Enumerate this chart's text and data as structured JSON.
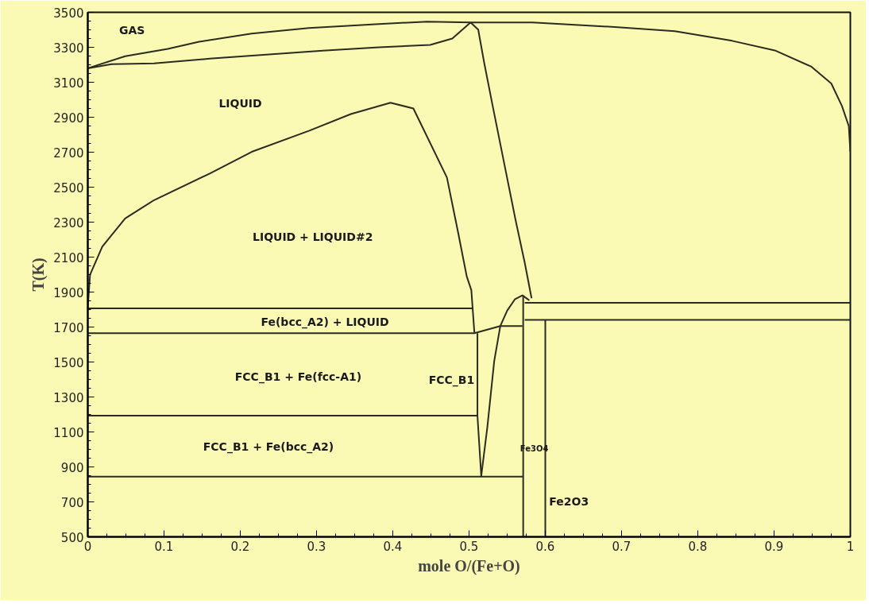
{
  "chart_data": {
    "type": "line",
    "xlabel": "mole O/(Fe+O)",
    "ylabel": "T(K)",
    "xlim": [
      0,
      1
    ],
    "ylim": [
      500,
      3500
    ],
    "xticks": [
      0,
      0.1,
      0.2,
      0.3,
      0.4,
      0.5,
      0.6,
      0.7,
      0.8,
      0.9,
      1
    ],
    "yticks": [
      500,
      700,
      900,
      1100,
      1300,
      1500,
      1700,
      1900,
      2100,
      2300,
      2500,
      2700,
      2900,
      3100,
      3300,
      3500
    ],
    "grid": false,
    "marker": "none",
    "line_style": "solid",
    "series": [
      {
        "color": "#2b2b1f",
        "x": [
          0,
          0.049,
          0.105,
          0.146,
          0.215,
          0.29,
          0.382,
          0.445,
          0.502,
          0.583,
          0.695,
          0.77,
          0.845,
          0.901,
          0.949,
          0.975,
          0.989,
          0.998,
          1
        ],
        "values": [
          3180,
          3249,
          3291,
          3332,
          3378,
          3410,
          3433,
          3447,
          3442,
          3442,
          3415,
          3392,
          3337,
          3282,
          3189,
          3093,
          2964,
          2849,
          2702
        ]
      },
      {
        "color": "#2b2b1f",
        "x": [
          0,
          0.031,
          0.087,
          0.16,
          0.234,
          0.308,
          0.382,
          0.449,
          0.478,
          0.502
        ],
        "values": [
          3180,
          3203,
          3208,
          3235,
          3258,
          3281,
          3300,
          3314,
          3350,
          3442
        ]
      },
      {
        "color": "#2b2b1f",
        "x": [
          0.502,
          0.512,
          0.52,
          0.531,
          0.546,
          0.561,
          0.573,
          0.582
        ],
        "values": [
          3442,
          3401,
          3208,
          2964,
          2638,
          2312,
          2068,
          1865
        ]
      },
      {
        "color": "#2b2b1f",
        "x": [
          0,
          0.003,
          0.019,
          0.049,
          0.087,
          0.16,
          0.215,
          0.29,
          0.345,
          0.397,
          0.427,
          0.471,
          0.486,
          0.497,
          0.503,
          0.507
        ],
        "values": [
          1810,
          1999,
          2160,
          2321,
          2426,
          2578,
          2702,
          2822,
          2918,
          2983,
          2950,
          2555,
          2233,
          1989,
          1911,
          1668
        ]
      },
      {
        "color": "#2b2b1f",
        "x": [
          0,
          0.505
        ],
        "values": [
          1807,
          1807
        ]
      },
      {
        "color": "#2b2b1f",
        "x": [
          0,
          0.507,
          0.541,
          0.57
        ],
        "values": [
          1665,
          1665,
          1706,
          1706
        ]
      },
      {
        "color": "#2b2b1f",
        "x": [
          0,
          0.511
        ],
        "values": [
          1193,
          1193
        ]
      },
      {
        "color": "#2b2b1f",
        "x": [
          0,
          0.571
        ],
        "values": [
          844,
          844
        ]
      },
      {
        "color": "#2b2b1f",
        "x": [
          0.511,
          0.511,
          0.516
        ],
        "values": [
          1665,
          1193,
          848
        ]
      },
      {
        "color": "#2b2b1f",
        "x": [
          0.516,
          0.524,
          0.533,
          0.541,
          0.55,
          0.56,
          0.57,
          0.579
        ],
        "values": [
          848,
          1128,
          1505,
          1706,
          1794,
          1858,
          1881,
          1853
        ]
      },
      {
        "color": "#2b2b1f",
        "x": [
          0.571,
          0.571
        ],
        "values": [
          500,
          1881
        ]
      },
      {
        "color": "#2b2b1f",
        "x": [
          0.6,
          0.6
        ],
        "values": [
          500,
          1741
        ]
      },
      {
        "color": "#2b2b1f",
        "x": [
          0.573,
          1
        ],
        "values": [
          1839,
          1839
        ]
      },
      {
        "color": "#2b2b1f",
        "x": [
          0.573,
          1
        ],
        "values": [
          1741,
          1741
        ]
      }
    ],
    "annotations": [
      "GAS",
      "LIQUID",
      "LIQUID + LIQUID#2",
      "Fe(bcc_A2) + LIQUID",
      "FCC_B1 + Fe(fcc-A1)",
      "FCC_B1 + Fe(bcc_A2)",
      "FCC_B1",
      "Fe3O4",
      "Fe2O3"
    ]
  }
}
